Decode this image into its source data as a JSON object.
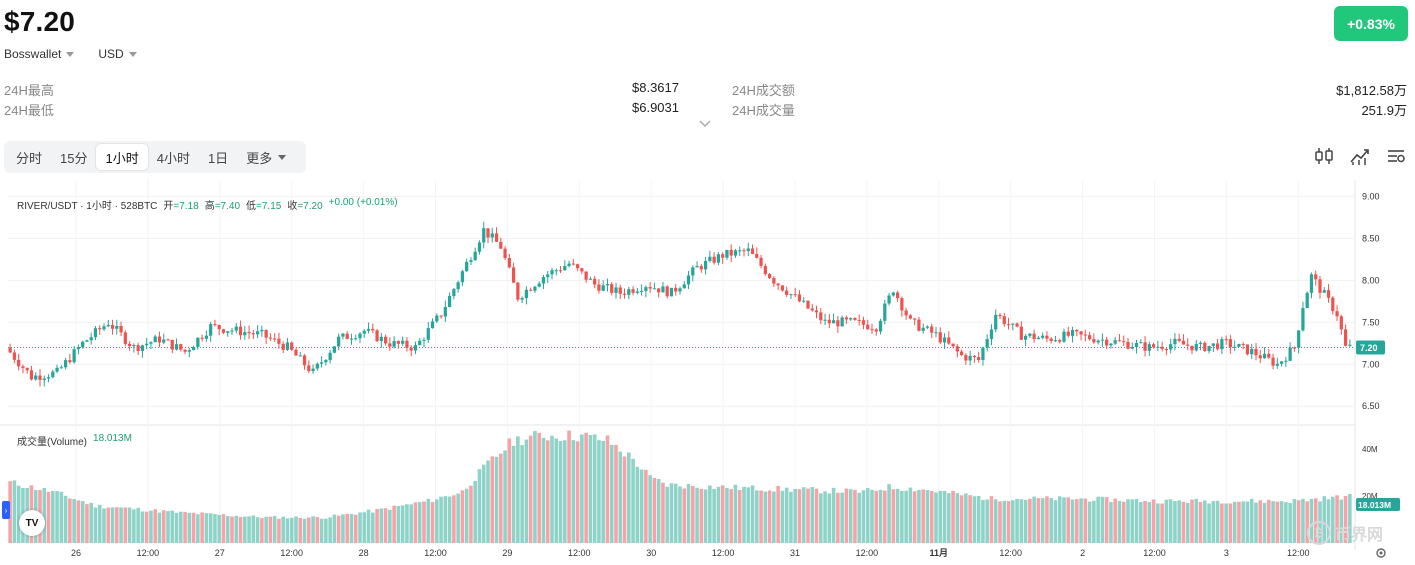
{
  "header": {
    "price": "$7.20",
    "wallet": "Bosswallet",
    "currency": "USD",
    "change": "+0.83%"
  },
  "stats": {
    "high_label": "24H最高",
    "high_value": "$8.3617",
    "low_label": "24H最低",
    "low_value": "$6.9031",
    "turnover_label": "24H成交额",
    "turnover_value": "$1,812.58万",
    "volume_label": "24H成交量",
    "volume_value": "251.9万"
  },
  "tabs": [
    "分时",
    "15分",
    "1小时",
    "4小时",
    "1日",
    "更多"
  ],
  "active_tab": "1小时",
  "legend": {
    "symbol": "RIVER/USDT · 1小时 · 528BTC",
    "open_label": "开",
    "open": "=7.18",
    "high_label": "高",
    "high": "=7.40",
    "low_label": "低",
    "low": "=7.15",
    "close_label": "收",
    "close": "=7.20",
    "change": "+0.00 (+0.01%)"
  },
  "volume_legend": {
    "label": "成交量(Volume)",
    "value": "18.013M"
  },
  "watermark": "币界网",
  "colors": {
    "up": "#26a69a",
    "down": "#ef5350",
    "up_vol": "#8fd3c8",
    "down_vol": "#f5a3a7",
    "badge": "#21c77a",
    "price_tag": "#26a69a"
  },
  "chart_data": [
    {
      "type": "candlestick",
      "title": "RIVER/USDT · 1小时 · 528BTC",
      "y_ticks": [
        9.0,
        8.5,
        8.0,
        7.5,
        7.0,
        6.5
      ],
      "y_tick_labels": [
        "9.00",
        "8.50",
        "8.00",
        "7.50",
        "7.00",
        "6.50"
      ],
      "ylim": [
        6.3,
        9.1
      ],
      "last_price": 7.2,
      "last_price_label": "7.20",
      "x_tick_labels": [
        "26",
        "12:00",
        "27",
        "12:00",
        "28",
        "12:00",
        "29",
        "12:00",
        "30",
        "12:00",
        "31",
        "12:00",
        "11月",
        "12:00",
        "2",
        "12:00",
        "3",
        "12:00"
      ],
      "bold_x_ticks": [
        "11月"
      ],
      "anchors": [
        [
          0,
          7.2
        ],
        [
          6,
          6.85
        ],
        [
          12,
          6.9
        ],
        [
          18,
          7.25
        ],
        [
          24,
          7.5
        ],
        [
          30,
          7.2
        ],
        [
          36,
          7.3
        ],
        [
          42,
          7.15
        ],
        [
          48,
          7.45
        ],
        [
          54,
          7.4
        ],
        [
          60,
          7.35
        ],
        [
          66,
          7.2
        ],
        [
          72,
          6.9
        ],
        [
          78,
          7.3
        ],
        [
          84,
          7.4
        ],
        [
          90,
          7.25
        ],
        [
          96,
          7.2
        ],
        [
          102,
          7.6
        ],
        [
          108,
          8.2
        ],
        [
          112,
          8.6
        ],
        [
          116,
          8.4
        ],
        [
          120,
          7.8
        ],
        [
          126,
          8.05
        ],
        [
          132,
          8.2
        ],
        [
          138,
          7.95
        ],
        [
          144,
          7.85
        ],
        [
          150,
          7.95
        ],
        [
          156,
          7.85
        ],
        [
          162,
          8.15
        ],
        [
          168,
          8.3
        ],
        [
          174,
          8.35
        ],
        [
          180,
          8.0
        ],
        [
          186,
          7.75
        ],
        [
          192,
          7.5
        ],
        [
          198,
          7.5
        ],
        [
          204,
          7.45
        ],
        [
          208,
          7.9
        ],
        [
          212,
          7.5
        ],
        [
          218,
          7.35
        ],
        [
          224,
          7.1
        ],
        [
          228,
          7.05
        ],
        [
          232,
          7.6
        ],
        [
          238,
          7.35
        ],
        [
          244,
          7.3
        ],
        [
          250,
          7.35
        ],
        [
          256,
          7.3
        ],
        [
          262,
          7.25
        ],
        [
          268,
          7.2
        ],
        [
          274,
          7.25
        ],
        [
          280,
          7.2
        ],
        [
          286,
          7.25
        ],
        [
          292,
          7.15
        ],
        [
          298,
          7.0
        ],
        [
          302,
          7.2
        ],
        [
          304,
          7.7
        ],
        [
          306,
          8.05
        ],
        [
          308,
          7.9
        ],
        [
          312,
          7.6
        ],
        [
          314,
          7.2
        ]
      ],
      "volume": {
        "y_ticks": [
          40,
          20
        ],
        "y_tick_labels": [
          "40M",
          "20M"
        ],
        "last_value_label": "18.013M",
        "anchors": [
          [
            0,
            26
          ],
          [
            10,
            22
          ],
          [
            20,
            16
          ],
          [
            40,
            13
          ],
          [
            60,
            11
          ],
          [
            74,
            11
          ],
          [
            86,
            14
          ],
          [
            98,
            18
          ],
          [
            106,
            22
          ],
          [
            112,
            34
          ],
          [
            118,
            44
          ],
          [
            124,
            46
          ],
          [
            134,
            46
          ],
          [
            140,
            44
          ],
          [
            146,
            36
          ],
          [
            150,
            28
          ],
          [
            154,
            25
          ],
          [
            166,
            24
          ],
          [
            200,
            22
          ],
          [
            206,
            24
          ],
          [
            214,
            23
          ],
          [
            222,
            21
          ],
          [
            230,
            19
          ],
          [
            250,
            19
          ],
          [
            270,
            18
          ],
          [
            290,
            18
          ],
          [
            300,
            18
          ],
          [
            314,
            20
          ]
        ]
      }
    }
  ]
}
